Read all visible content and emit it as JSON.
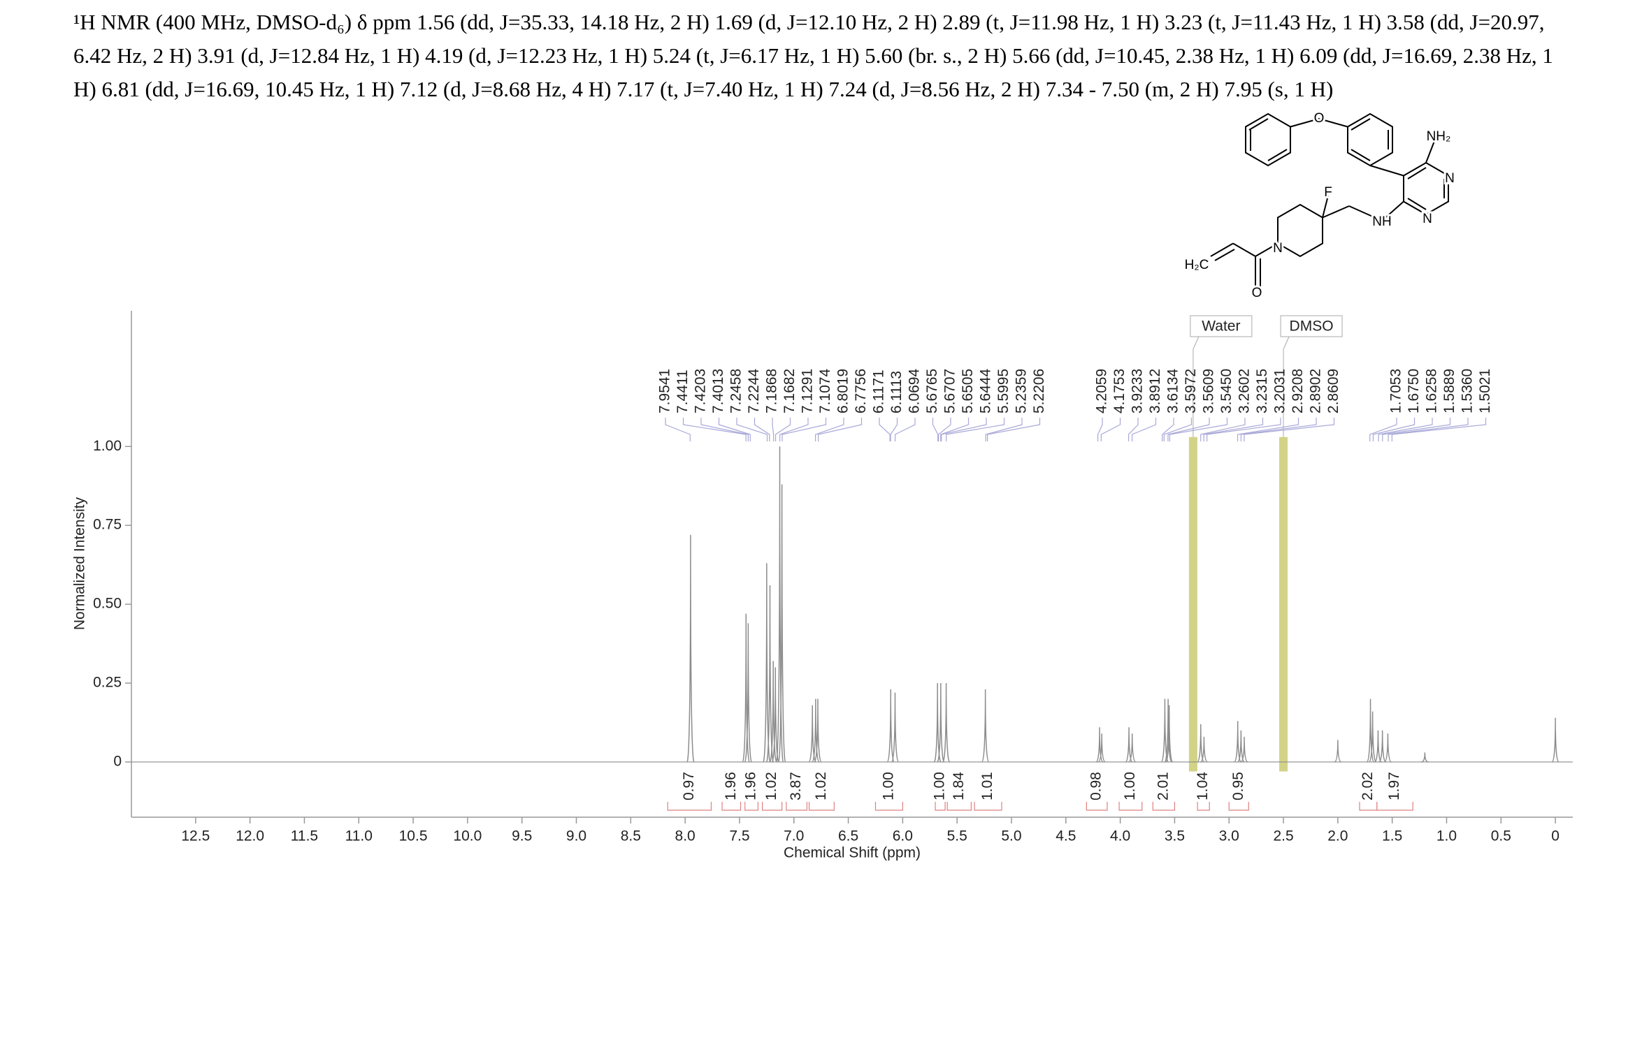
{
  "chart_data": {
    "type": "nmr",
    "title": "¹H NMR (400 MHz, DMSO-d₆) δ ppm 1.56 (dd, J=35.33, 14.18 Hz, 2 H) 1.69 (d, J=12.10 Hz, 2 H) 2.89 (t, J=11.98 Hz, 1 H) 3.23 (t, J=11.43 Hz, 1 H) 3.58 (dd, J=20.97, 6.42 Hz, 2 H) 3.91 (d, J=12.84 Hz, 1 H) 4.19 (d, J=12.23 Hz, 1 H) 5.24 (t, J=6.17 Hz, 1 H) 5.60 (br. s., 2 H) 5.66 (dd, J=10.45, 2.38 Hz, 1 H) 6.09 (dd, J=16.69, 2.38 Hz, 1 H) 6.81 (dd, J=16.69, 10.45 Hz, 1 H) 7.12 (d, J=8.68 Hz, 4 H) 7.17 (t, J=7.40 Hz, 1 H) 7.24 (d, J=8.56 Hz, 2 H) 7.34 - 7.50 (m, 2 H) 7.95 (s, 1 H)",
    "x_label": "Chemical Shift (ppm)",
    "y_label": "Normalized Intensity",
    "xlim": [
      13.09,
      -0.16
    ],
    "xticks": [
      12.5,
      {
        "value": 12,
        "label": "12.0"
      },
      11.5,
      {
        "value": 11,
        "label": "11.0"
      },
      10.5,
      {
        "value": 10,
        "label": "10.0"
      },
      9.5,
      {
        "value": 9,
        "label": "9.0"
      },
      8.5,
      {
        "value": 8,
        "label": "8.0"
      },
      7.5,
      {
        "value": 7,
        "label": "7.0"
      },
      6.5,
      {
        "value": 6,
        "label": "6.0"
      },
      5.5,
      {
        "value": 5,
        "label": "5.0"
      },
      4.5,
      {
        "value": 4,
        "label": "4.0"
      },
      3.5,
      {
        "value": 3,
        "label": "3.0"
      },
      2.5,
      {
        "value": 2,
        "label": "2.0"
      },
      1.5,
      {
        "value": 1,
        "label": "1.0"
      },
      0.5,
      0
    ],
    "ylim": [
      -0.175,
      1.43
    ],
    "yticks": [
      {
        "value": 1,
        "label": "1.00"
      },
      0.75,
      {
        "value": 0.5,
        "label": "0.50"
      },
      0.25,
      0
    ],
    "color": "#8c8c8c",
    "x": [
      7.95,
      7.44,
      7.42,
      7.25,
      7.22,
      7.19,
      7.17,
      7.13,
      7.11,
      6.83,
      6.8,
      6.78,
      6.11,
      6.07,
      5.68,
      5.65,
      5.6,
      5.24,
      4.19,
      4.17,
      3.92,
      3.89,
      3.59,
      3.56,
      3.55,
      3.26,
      3.23,
      2.92,
      2.89,
      2.86,
      2.0,
      1.7,
      1.68,
      1.63,
      1.59,
      1.54,
      1.2,
      0
    ],
    "values": [
      0.72,
      0.47,
      0.44,
      0.63,
      0.56,
      0.32,
      0.3,
      1.0,
      0.88,
      0.18,
      0.2,
      0.2,
      0.23,
      0.22,
      0.25,
      0.25,
      0.25,
      0.23,
      0.11,
      0.09,
      0.11,
      0.09,
      0.2,
      0.2,
      0.18,
      0.12,
      0.08,
      0.13,
      0.1,
      0.08,
      0.07,
      0.2,
      0.16,
      0.1,
      0.1,
      0.09,
      0.03,
      0.14
    ],
    "peak_labels": [
      {
        "value": 7.9541,
        "label": "7.9541"
      },
      {
        "value": 7.4411,
        "label": "7.4411"
      },
      {
        "value": 7.4203,
        "label": "7.4203"
      },
      {
        "value": 7.4013,
        "label": "7.4013"
      },
      {
        "value": 7.2458,
        "label": "7.2458"
      },
      {
        "value": 7.2244,
        "label": "7.2244"
      },
      {
        "value": 7.1868,
        "label": "7.1868"
      },
      {
        "value": 7.1682,
        "label": "7.1682"
      },
      {
        "value": 7.1291,
        "label": "7.1291"
      },
      {
        "value": 7.1074,
        "label": "7.1074"
      },
      {
        "value": 6.8019,
        "label": "6.8019"
      },
      {
        "value": 6.7756,
        "label": "6.7756"
      },
      {
        "value": 6.1171,
        "label": "6.1171"
      },
      {
        "value": 6.1113,
        "label": "6.1113"
      },
      {
        "value": 6.0694,
        "label": "6.0694"
      },
      {
        "value": 5.6765,
        "label": "5.6765"
      },
      {
        "value": 5.6707,
        "label": "5.6707"
      },
      {
        "value": 5.6505,
        "label": "5.6505"
      },
      {
        "value": 5.6444,
        "label": "5.6444"
      },
      {
        "value": 5.5995,
        "label": "5.5995"
      },
      {
        "value": 5.2359,
        "label": "5.2359"
      },
      {
        "value": 5.2206,
        "label": "5.2206"
      },
      {
        "value": 4.2059,
        "label": "4.2059"
      },
      {
        "value": 4.1753,
        "label": "4.1753"
      },
      {
        "value": 3.9233,
        "label": "3.9233"
      },
      {
        "value": 3.8912,
        "label": "3.8912"
      },
      {
        "value": 3.6134,
        "label": "3.6134"
      },
      {
        "value": 3.5972,
        "label": "3.5972"
      },
      {
        "value": 3.5609,
        "label": "3.5609"
      },
      {
        "value": 3.545,
        "label": "3.5450"
      },
      {
        "value": 3.2602,
        "label": "3.2602"
      },
      {
        "value": 3.2315,
        "label": "3.2315"
      },
      {
        "value": 3.2031,
        "label": "3.2031"
      },
      {
        "value": 2.9208,
        "label": "2.9208"
      },
      {
        "value": 2.8902,
        "label": "2.8902"
      },
      {
        "value": 2.8609,
        "label": "2.8609"
      },
      {
        "value": 1.7053,
        "label": "1.7053"
      },
      {
        "value": 1.675,
        "label": "1.6750"
      },
      {
        "value": 1.6258,
        "label": "1.6258"
      },
      {
        "value": 1.5889,
        "label": "1.5889"
      },
      {
        "value": 1.536,
        "label": "1.5360"
      },
      {
        "value": 1.5021,
        "label": "1.5021"
      }
    ],
    "integrals": [
      {
        "value": 0.97,
        "label": "0.97",
        "range": [
          8.16,
          7.76
        ]
      },
      {
        "value": 1.96,
        "label": "1.96",
        "range": [
          7.66,
          7.49
        ]
      },
      {
        "value": 1.96,
        "label": "1.96",
        "range": [
          7.45,
          7.33
        ]
      },
      {
        "value": 1.02,
        "label": "1.02",
        "range": [
          7.29,
          7.11
        ]
      },
      {
        "value": 3.87,
        "label": "3.87",
        "range": [
          7.07,
          6.88
        ]
      },
      {
        "value": 1.02,
        "label": "1.02",
        "range": [
          6.86,
          6.63
        ]
      },
      {
        "value": 1,
        "label": "1.00",
        "range": [
          6.25,
          6.0
        ]
      },
      {
        "value": 1,
        "label": "1.00",
        "range": [
          5.7,
          5.61
        ]
      },
      {
        "value": 1.84,
        "label": "1.84",
        "range": [
          5.59,
          5.37
        ]
      },
      {
        "value": 1.01,
        "label": "1.01",
        "range": [
          5.34,
          5.09
        ]
      },
      {
        "value": 0.98,
        "label": "0.98",
        "range": [
          4.31,
          4.12
        ]
      },
      {
        "value": 1,
        "label": "1.00",
        "range": [
          4.01,
          3.8
        ]
      },
      {
        "value": 2.01,
        "label": "2.01",
        "range": [
          3.7,
          3.5
        ]
      },
      {
        "value": 1.04,
        "label": "1.04",
        "range": [
          3.29,
          3.18
        ]
      },
      {
        "value": 0.95,
        "label": "0.95",
        "range": [
          3.0,
          2.82
        ]
      },
      {
        "value": 2.02,
        "label": "2.02",
        "range": [
          1.8,
          1.64
        ]
      },
      {
        "value": 1.97,
        "label": "1.97",
        "range": [
          1.64,
          1.31
        ]
      }
    ],
    "solvents": [
      {
        "label": "Water",
        "value": 3.33
      },
      {
        "label": "DMSO",
        "value": 2.5
      }
    ],
    "structure_labels": [
      "O",
      "NH₂",
      "N",
      "N",
      "F",
      "NH",
      "N",
      "H₂C",
      "O"
    ]
  }
}
